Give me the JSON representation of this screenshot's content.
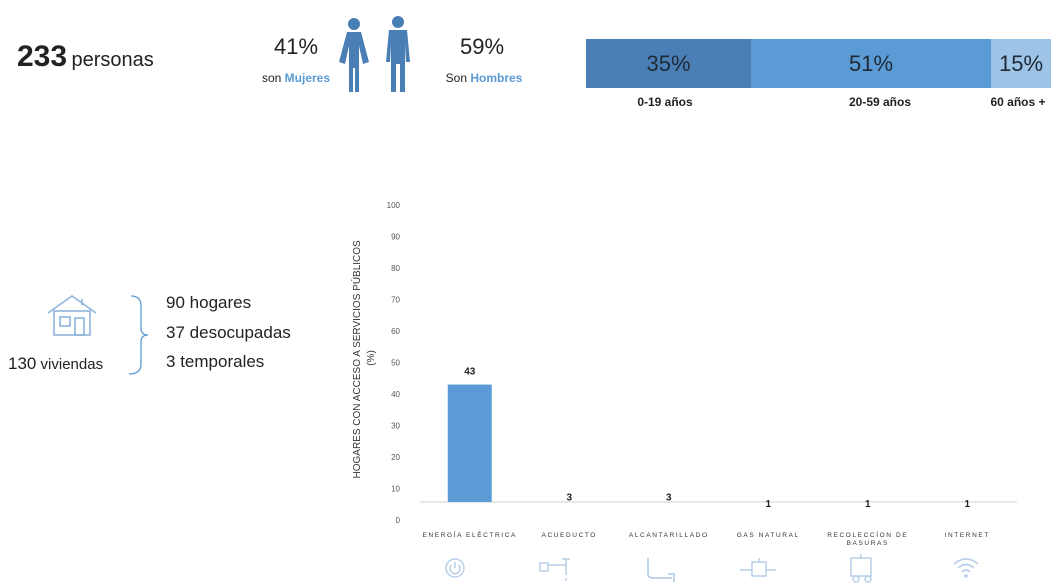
{
  "summary": {
    "total_number": "233",
    "total_label": "personas"
  },
  "gender": {
    "female_pct": "41%",
    "female_prefix": "son",
    "female_word": "Mujeres",
    "male_pct": "59%",
    "male_prefix": "Son",
    "male_word": "Hombres"
  },
  "age_groups": [
    {
      "pct": "35%",
      "label": "0-19 años",
      "value": 35,
      "color": "#4a7fb5"
    },
    {
      "pct": "51%",
      "label": "20-59 años",
      "value": 51,
      "color": "#5b9bd5"
    },
    {
      "pct": "15%",
      "label": "60 años +",
      "value": 15,
      "color": "#9dc3e6"
    }
  ],
  "housing": {
    "viviendas_num": "130",
    "viviendas_label": "viviendas",
    "hogares": "90",
    "hogares_label": "hogares",
    "desocupadas": "37",
    "desocupadas_label": "desocupadas",
    "temporales": "3",
    "temporales_label": "temporales"
  },
  "chart_data": {
    "type": "bar",
    "categories": [
      "ENERGÍA ELÉCTRICA",
      "ACUEDUCTO",
      "ALCANTARILLADO",
      "GAS NATURAL",
      "RECOLECCÍON DE BASURAS",
      "INTERNET"
    ],
    "values": [
      43,
      3,
      3,
      1,
      1,
      1
    ],
    "data_labels": [
      "43",
      "3",
      "3",
      "1",
      "1",
      "1"
    ],
    "ylabel": "HOGARES CON ACCESO A SERVICIOS PÚBLICOS (%)",
    "ylim": [
      0,
      100
    ],
    "yticks": [
      0,
      10,
      20,
      30,
      40,
      50,
      60,
      70,
      80,
      90,
      100
    ],
    "bar_color": "#5b9bd5",
    "icons": [
      "power-icon",
      "faucet-icon",
      "pipe-icon",
      "gas-meter-icon",
      "garbage-truck-icon",
      "wifi-icon"
    ]
  }
}
